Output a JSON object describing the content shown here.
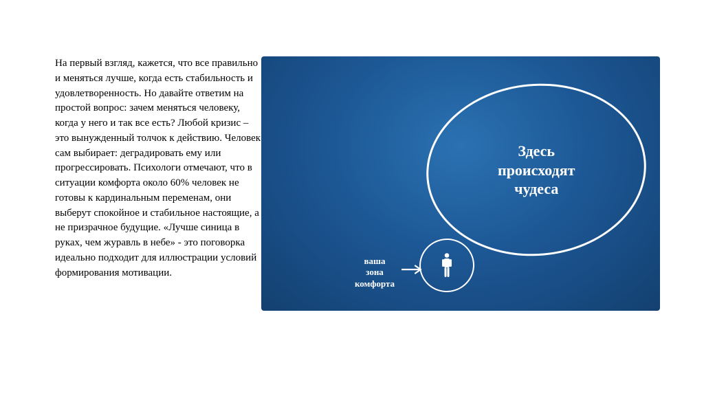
{
  "slide": {
    "paragraph": "На первый взгляд, кажется, что все правильно и меняться лучше, когда есть стабильность и удовлетворенность. Но давайте ответим на простой вопрос: зачем меняться человеку, когда у него и так все есть? Любой кризис – это вынужденный толчок к действию. Человек сам выбирает: деградировать ему или прогрессировать. Психологи отмечают, что в ситуации комфорта около 60% человек не готовы к кардинальным переменам, они выберут спокойное и стабильное настоящие, а не призрачное будущие. «Лучше синица в руках, чем журавль в небе» - это поговорка идеально подходит для иллюстрации условий формирования мотивации.",
    "text_color": "#000000",
    "text_fontsize": 15
  },
  "graphic": {
    "bg_gradient_inner": "#2b72b2",
    "bg_gradient_outer": "#134070",
    "big_circle": {
      "text": "Здесь\nпроисходят\nчудеса",
      "stroke": "#ffffff",
      "stroke_width": 3,
      "text_color": "#ffffff",
      "text_fontsize": 22
    },
    "small_circle": {
      "label": "ваша\nзона\nкомфорта",
      "stroke": "#ffffff",
      "stroke_width": 2.5,
      "label_color": "#ffffff",
      "label_fontsize": 13
    },
    "arrow_color": "#ffffff",
    "person_color": "#ffffff"
  }
}
